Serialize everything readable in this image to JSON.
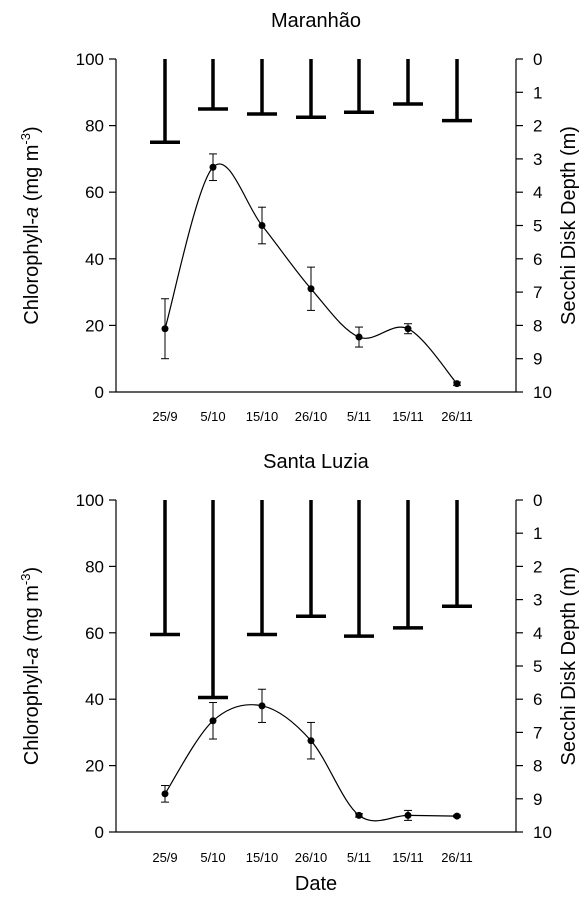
{
  "chart_data": [
    {
      "type": "line",
      "title": "Maranhão",
      "categories": [
        "25/9",
        "5/10",
        "15/10",
        "26/10",
        "5/11",
        "15/11",
        "26/11"
      ],
      "ylabel": {
        "base": "Chlorophyll-",
        "italic": "a",
        "unit": " (mg m",
        "sup": "-3",
        "close": ")"
      },
      "ylabel_right": "Secchi Disk Depth (m)",
      "ylim": [
        0,
        100
      ],
      "yticks": [
        "0",
        "20",
        "40",
        "60",
        "80",
        "100"
      ],
      "ylim_right": [
        0,
        10
      ],
      "yticks_right": [
        "0",
        "1",
        "2",
        "3",
        "4",
        "5",
        "6",
        "7",
        "8",
        "9",
        "10"
      ],
      "series": [
        {
          "values": [
            19,
            67.5,
            50,
            31,
            16.5,
            19,
            2.5
          ],
          "error": [
            9,
            4,
            5.5,
            6.5,
            3,
            1.5,
            0.5
          ]
        }
      ],
      "secchi_depth": [
        2.5,
        1.5,
        1.65,
        1.75,
        1.6,
        1.35,
        1.85
      ]
    },
    {
      "type": "line",
      "title": "Santa Luzia",
      "categories": [
        "25/9",
        "5/10",
        "15/10",
        "26/10",
        "5/11",
        "15/11",
        "26/11"
      ],
      "xlabel": "Date",
      "ylabel": {
        "base": "Chlorophyll-",
        "italic": "a",
        "unit": " (mg m",
        "sup": "-3",
        "close": ")"
      },
      "ylabel_right": "Secchi Disk Depth (m)",
      "ylim": [
        0,
        100
      ],
      "yticks": [
        "0",
        "20",
        "40",
        "60",
        "80",
        "100"
      ],
      "ylim_right": [
        0,
        10
      ],
      "yticks_right": [
        "0",
        "1",
        "2",
        "3",
        "4",
        "5",
        "6",
        "7",
        "8",
        "9",
        "10"
      ],
      "series": [
        {
          "values": [
            11.5,
            33.5,
            38,
            27.5,
            5,
            5,
            4.8
          ],
          "error": [
            2.5,
            5.5,
            5,
            5.5,
            0.5,
            1.5,
            0.3
          ]
        }
      ],
      "secchi_depth": [
        4.05,
        5.95,
        4.05,
        3.5,
        4.1,
        3.85,
        3.2
      ]
    }
  ]
}
